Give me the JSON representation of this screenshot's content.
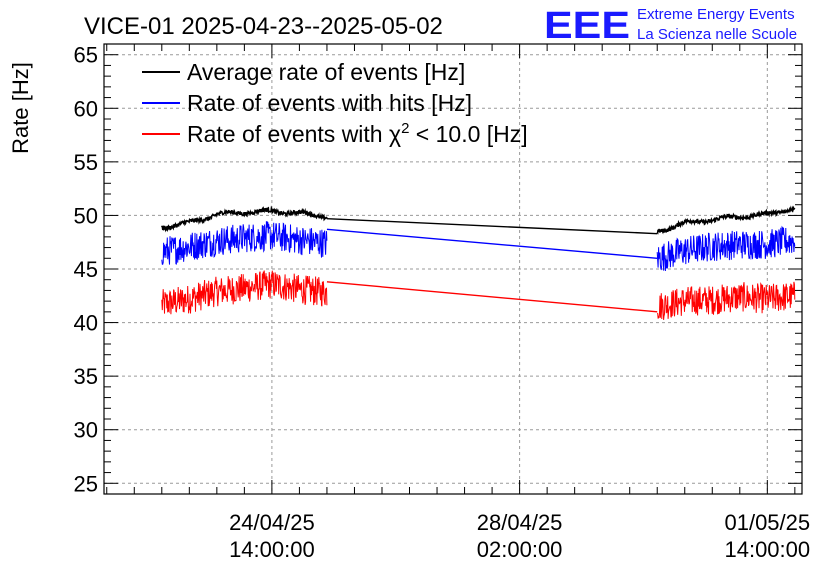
{
  "header": {
    "title": "VICE-01 2025-04-23--2025-05-02",
    "brand_logo": "EEE",
    "brand_line1": "Extreme Energy Events",
    "brand_line2": "La Scienza nelle Scuole",
    "brand_color": "#1a1aff"
  },
  "chart_data": {
    "type": "line",
    "title": "VICE-01 2025-04-23--2025-05-02",
    "xlabel": "",
    "ylabel": "Rate [Hz]",
    "ylim": [
      24,
      66
    ],
    "yticks": [
      25,
      30,
      35,
      40,
      45,
      50,
      55,
      60,
      65
    ],
    "ytick_labels": [
      "25",
      "30",
      "35",
      "40",
      "45",
      "50",
      "55",
      "60",
      "65"
    ],
    "xlim_days": [
      -2.05,
      10.63
    ],
    "xticks": [
      {
        "day": 1.0,
        "date": "24/04/25",
        "time": "14:00:00"
      },
      {
        "day": 5.5,
        "date": "28/04/25",
        "time": "02:00:00"
      },
      {
        "day": 10.0,
        "date": "01/05/25",
        "time": "14:00:00"
      }
    ],
    "x_unit_note": "days since 2025-04-23 14:00:00",
    "grid": true,
    "legend_position": "top-left",
    "series": [
      {
        "name": "Average rate of events [Hz]",
        "color": "#000000",
        "segments": [
          {
            "x": [
              -1.0,
              -0.5,
              0.0,
              0.5,
              1.0,
              1.5,
              2.0
            ],
            "y": [
              48.9,
              49.3,
              50.1,
              50.3,
              50.4,
              50.2,
              49.9
            ],
            "noise": 0.4
          },
          {
            "x": [
              8.0,
              8.5,
              9.0,
              9.5,
              10.0,
              10.5
            ],
            "y": [
              48.5,
              49.3,
              49.6,
              49.9,
              50.1,
              50.7
            ],
            "noise": 0.4
          }
        ],
        "gap_line": {
          "from": [
            2.0,
            49.7
          ],
          "to": [
            8.0,
            48.3
          ]
        }
      },
      {
        "name": "Rate of events with hits [Hz]",
        "color": "#0000ff",
        "segments": [
          {
            "x": [
              -1.0,
              -0.5,
              0.0,
              0.5,
              1.0,
              1.5,
              2.0
            ],
            "y": [
              46.6,
              47.1,
              47.6,
              47.9,
              48.1,
              47.7,
              47.4
            ],
            "noise": 2.8
          },
          {
            "x": [
              8.0,
              8.5,
              9.0,
              9.5,
              10.0,
              10.5
            ],
            "y": [
              46.0,
              46.7,
              47.1,
              47.3,
              47.3,
              47.7
            ],
            "noise": 2.8
          }
        ],
        "gap_line": {
          "from": [
            2.0,
            48.7
          ],
          "to": [
            8.0,
            46.0
          ]
        }
      },
      {
        "name": "Rate of events with χ² < 10.0 [Hz]",
        "legend_prefix": "Rate of events with ",
        "legend_symbol": "χ",
        "legend_sup": "2",
        "legend_suffix": " < 10.0 [Hz]",
        "color": "#ff0000",
        "segments": [
          {
            "x": [
              -1.0,
              -0.5,
              0.0,
              0.5,
              1.0,
              1.5,
              2.0
            ],
            "y": [
              41.7,
              42.2,
              42.9,
              43.2,
              43.6,
              43.1,
              42.8
            ],
            "noise": 2.8
          },
          {
            "x": [
              8.0,
              8.5,
              9.0,
              9.5,
              10.0,
              10.5
            ],
            "y": [
              41.5,
              42.0,
              42.1,
              42.4,
              42.2,
              42.5
            ],
            "noise": 2.8
          }
        ],
        "gap_line": {
          "from": [
            2.0,
            43.8
          ],
          "to": [
            8.0,
            41.0
          ]
        }
      }
    ]
  }
}
